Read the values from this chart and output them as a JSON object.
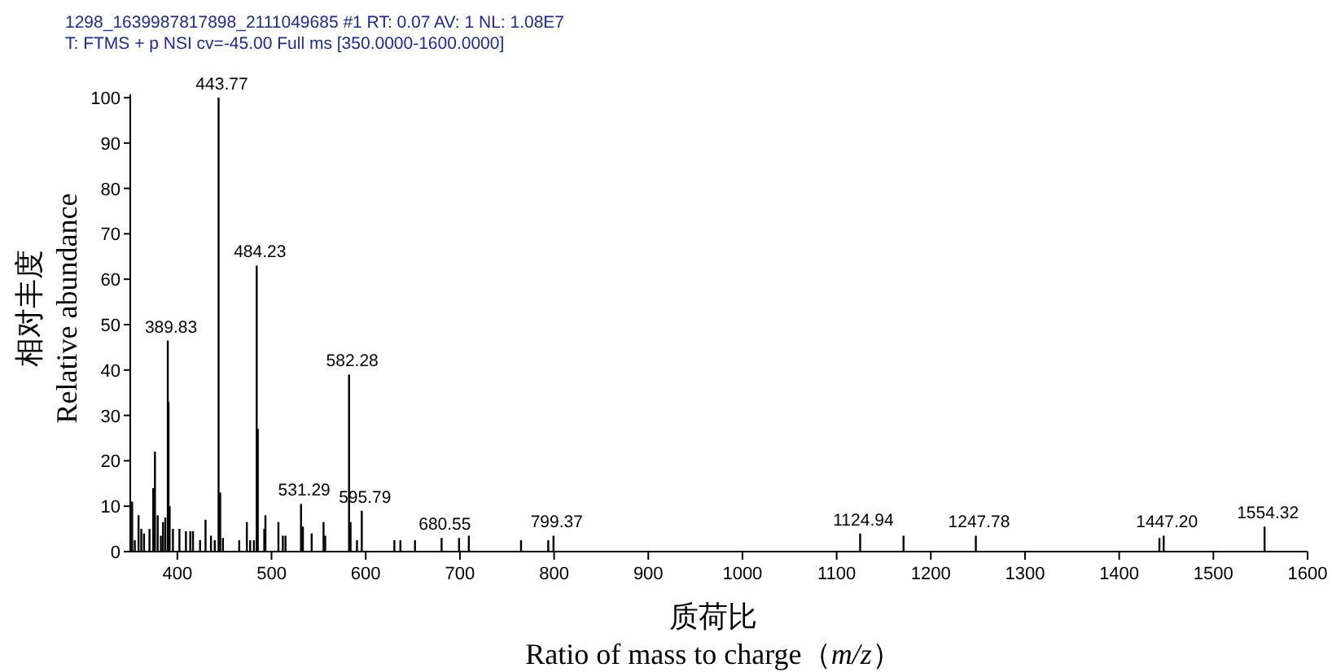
{
  "chart_data": {
    "type": "bar",
    "title": "1298_1639987817898_2111049685 #1   RT: 0.07   AV: 1   NL: 1.08E7",
    "subtitle": "T: FTMS + p NSI cv=-45.00  Full ms [350.0000-1600.0000]",
    "xlabel": "质荷比\nRatio of mass to charge（*m/z*）",
    "ylabel": "相对丰度\nRelative abundance",
    "x": [
      352.0,
      354.8,
      358.8,
      361.7,
      364.6,
      370.4,
      374.4,
      376.2,
      379.1,
      382.5,
      384.8,
      387.2,
      389.83,
      390.6,
      391.8,
      395.3,
      402.2,
      409.1,
      413.7,
      416.6,
      424.1,
      429.9,
      435.7,
      439.7,
      443.77,
      445.5,
      448.4,
      465.7,
      473.8,
      477.3,
      481.3,
      484.23,
      485.4,
      492.3,
      493.5,
      507.3,
      512.0,
      514.8,
      531.29,
      533.3,
      542.6,
      555.2,
      557.0,
      582.28,
      583.9,
      590.7,
      595.79,
      630.4,
      636.8,
      652.3,
      680.55,
      699.1,
      709.5,
      764.9,
      793.8,
      799.37,
      1124.94,
      1171.0,
      1247.78,
      1442.7,
      1447.2,
      1554.32
    ],
    "series": [
      {
        "color": "#000000",
        "values": [
          11,
          2.5,
          8,
          5,
          4,
          5,
          14,
          22,
          8,
          3.5,
          6.5,
          7.5,
          46.5,
          33,
          10,
          5,
          5,
          4.5,
          4.5,
          4.5,
          2.5,
          7,
          3.5,
          2.5,
          100,
          13,
          3,
          2.5,
          6.5,
          2.5,
          2.5,
          63,
          27,
          5,
          8,
          6.5,
          3.5,
          3.5,
          10.5,
          5.5,
          4,
          6.5,
          3.5,
          39,
          6.5,
          2.5,
          9,
          2.5,
          2.5,
          2.5,
          3,
          3,
          3.5,
          2.5,
          2.5,
          3.5,
          4,
          3.5,
          3.5,
          3,
          3.5,
          5.5
        ]
      }
    ],
    "xlim": [
      350,
      1600
    ],
    "ylim": [
      0,
      100
    ],
    "xticks": [
      400,
      500,
      600,
      700,
      800,
      900,
      1000,
      1100,
      1200,
      1300,
      1400,
      1500,
      1600
    ],
    "yticks": [
      0,
      10,
      20,
      30,
      40,
      50,
      60,
      70,
      80,
      90,
      100
    ],
    "annotations": [
      {
        "text": "389.83",
        "x": 389.83,
        "y": 46.5
      },
      {
        "text": "443.77",
        "x": 443.77,
        "y": 100
      },
      {
        "text": "484.23",
        "x": 484.23,
        "y": 63
      },
      {
        "text": "531.29",
        "x": 531.29,
        "y": 10.5
      },
      {
        "text": "582.28",
        "x": 582.28,
        "y": 39
      },
      {
        "text": "595.79",
        "x": 595.79,
        "y": 9
      },
      {
        "text": "680.55",
        "x": 680.55,
        "y": 3
      },
      {
        "text": "799.37",
        "x": 799.37,
        "y": 3.5
      },
      {
        "text": "1124.94",
        "x": 1124.94,
        "y": 4
      },
      {
        "text": "1247.78",
        "x": 1247.78,
        "y": 3.5
      },
      {
        "text": "1447.20",
        "x": 1447.2,
        "y": 3.5
      },
      {
        "text": "1554.32",
        "x": 1554.32,
        "y": 5.5
      }
    ],
    "grid": false
  }
}
